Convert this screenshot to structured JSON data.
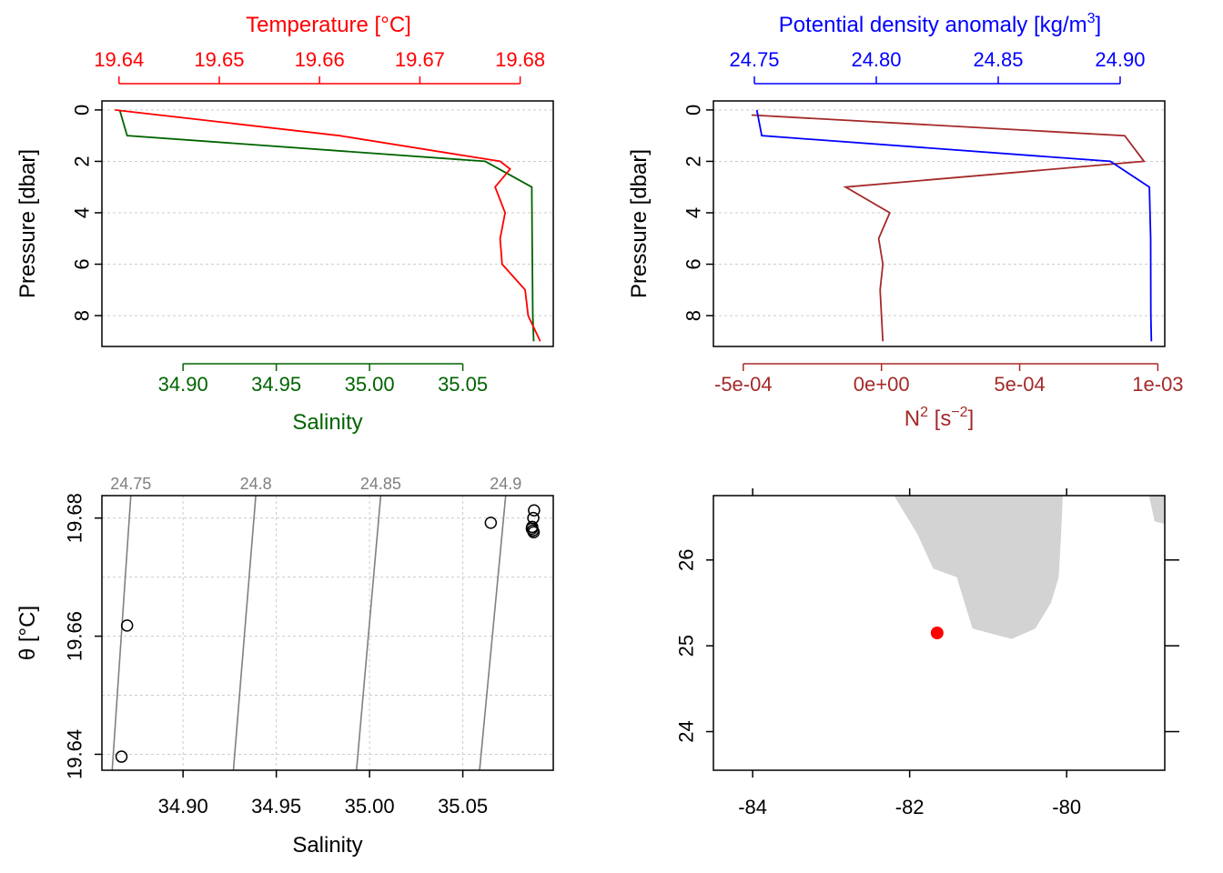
{
  "colors": {
    "temperature": "#ff0000",
    "salinity": "#006400",
    "density": "#0000ff",
    "n2": "#a52a2a",
    "isopycnal": "#808080",
    "land": "#d3d3d3",
    "station": "#ff0000",
    "axis": "#000000",
    "grid": "#cccccc"
  },
  "chart_data": [
    {
      "type": "line",
      "panel": "temperature-salinity-profile",
      "top_axis_label": "Temperature [°C]",
      "bottom_axis_label": "Salinity",
      "ylabel": "Pressure [dbar]",
      "y_reversed": true,
      "ylim": [
        9.2,
        -0.35
      ],
      "temperature_lim": [
        19.6383,
        19.6833
      ],
      "salinity_lim": [
        34.8565,
        35.0985
      ],
      "temperature_ticks": [
        "19.64",
        "19.65",
        "19.66",
        "19.67",
        "19.68"
      ],
      "salinity_ticks": [
        "34.90",
        "34.95",
        "35.00",
        "35.05"
      ],
      "pressure_ticks": [
        "0",
        "2",
        "4",
        "6",
        "8"
      ],
      "grid": true,
      "series": [
        {
          "name": "Temperature",
          "color": "#ff0000",
          "x": [
            19.6396,
            19.662,
            19.678,
            19.679,
            19.6775,
            19.6785,
            19.678,
            19.6782,
            19.6805,
            19.6808,
            19.682
          ],
          "pressure": [
            0,
            1,
            2,
            2.3,
            3,
            4,
            5,
            6,
            7,
            8,
            9
          ]
        },
        {
          "name": "Salinity",
          "color": "#006400",
          "x": [
            34.866,
            34.87,
            35.062,
            35.087,
            35.0872,
            35.0875,
            35.088
          ],
          "pressure": [
            0,
            1,
            2,
            3,
            5,
            8,
            9
          ]
        }
      ]
    },
    {
      "type": "line",
      "panel": "density-n2-profile",
      "top_axis_label": "Potential density anomaly [kg/m",
      "top_axis_label_sup": "3",
      "top_axis_label_end": "]",
      "bottom_axis_label": "N",
      "bottom_axis_label_sup": "2",
      "bottom_axis_label_unit": " [s",
      "bottom_axis_label_unit_sup": "−2",
      "bottom_axis_label_end": "]",
      "ylabel": "Pressure [dbar]",
      "y_reversed": true,
      "ylim": [
        9.2,
        -0.35
      ],
      "density_lim": [
        24.7332,
        24.9183
      ],
      "n2_lim": [
        -0.000608,
        0.001025
      ],
      "density_ticks": [
        "24.75",
        "24.80",
        "24.85",
        "24.90"
      ],
      "n2_ticks": [
        "-5e-04",
        "0e+00",
        "5e-04",
        "1e-03"
      ],
      "pressure_ticks": [
        "0",
        "2",
        "4",
        "6",
        "8"
      ],
      "grid": true,
      "series": [
        {
          "name": "Potential density anomaly",
          "color": "#0000ff",
          "x": [
            24.751,
            24.753,
            24.896,
            24.912,
            24.9125,
            24.9126,
            24.9128
          ],
          "pressure": [
            0,
            1,
            2,
            3,
            5,
            8,
            9
          ]
        },
        {
          "name": "N2",
          "color": "#a52a2a",
          "x": [
            -0.00047,
            0.00088,
            0.00095,
            -0.00013,
            3e-05,
            -1e-05,
            5e-06,
            -5e-06,
            5e-06
          ],
          "pressure": [
            0.2,
            1,
            2,
            3,
            4,
            5,
            6,
            7,
            9
          ]
        }
      ]
    },
    {
      "type": "scatter",
      "panel": "ts-diagram",
      "xlabel": "Salinity",
      "ylabel": "θ [°C]",
      "xlim": [
        34.8565,
        35.0985
      ],
      "ylim": [
        19.6373,
        19.6838
      ],
      "x_ticks": [
        "34.90",
        "34.95",
        "35.00",
        "35.05"
      ],
      "y_ticks": [
        "19.64",
        "19.66",
        "19.68"
      ],
      "grid": true,
      "points": [
        {
          "salinity": 34.867,
          "theta": 19.6396
        },
        {
          "salinity": 34.87,
          "theta": 19.6618
        },
        {
          "salinity": 35.065,
          "theta": 19.6792
        },
        {
          "salinity": 35.0878,
          "theta": 19.68
        },
        {
          "salinity": 35.0882,
          "theta": 19.6813
        },
        {
          "salinity": 35.0872,
          "theta": 19.6785
        },
        {
          "salinity": 35.0876,
          "theta": 19.6779
        },
        {
          "salinity": 35.087,
          "theta": 19.6782
        },
        {
          "salinity": 35.088,
          "theta": 19.6776
        }
      ],
      "isopycnals": [
        {
          "label": "24.75",
          "salinity_at_top": 34.872,
          "salinity_at_bottom": 34.862
        },
        {
          "label": "24.8",
          "salinity_at_top": 34.939,
          "salinity_at_bottom": 34.927
        },
        {
          "label": "24.85",
          "salinity_at_top": 35.006,
          "salinity_at_bottom": 34.993
        },
        {
          "label": "24.9",
          "salinity_at_top": 35.073,
          "salinity_at_bottom": 35.059
        }
      ]
    },
    {
      "type": "map",
      "panel": "station-map",
      "xlim": [
        -84.5,
        -78.75
      ],
      "ylim": [
        23.55,
        26.75
      ],
      "x_ticks": [
        -84,
        -82,
        -80
      ],
      "y_ticks": [
        24,
        25,
        26
      ],
      "station": {
        "lon": -81.65,
        "lat": 25.15
      },
      "land": [
        [
          [
            -82.2,
            26.75
          ],
          [
            -81.9,
            26.3
          ],
          [
            -81.7,
            25.9
          ],
          [
            -81.4,
            25.8
          ],
          [
            -81.2,
            25.2
          ],
          [
            -80.7,
            25.08
          ],
          [
            -80.4,
            25.2
          ],
          [
            -80.2,
            25.5
          ],
          [
            -80.1,
            25.8
          ],
          [
            -80.07,
            26.3
          ],
          [
            -80.05,
            26.75
          ]
        ],
        [
          [
            -78.95,
            26.75
          ],
          [
            -78.88,
            26.45
          ],
          [
            -78.75,
            26.42
          ],
          [
            -78.75,
            26.75
          ]
        ]
      ]
    }
  ]
}
